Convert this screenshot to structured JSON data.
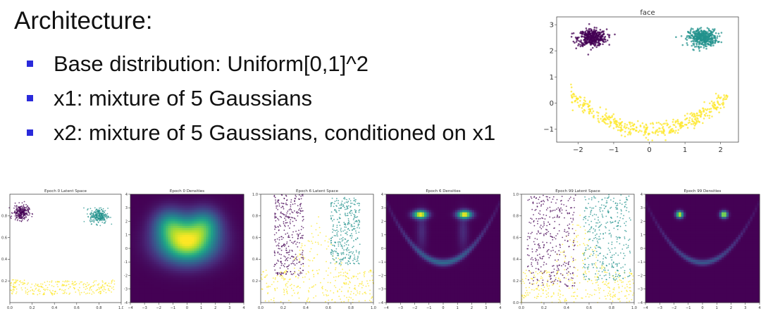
{
  "slide": {
    "title": "Architecture:",
    "bullets": [
      "Base distribution: Uniform[0,1]^2",
      "x1: mixture of 5 Gaussians",
      "x2: mixture of 5 Gaussians, conditioned on x1"
    ],
    "bullet_color": "#2a2adb"
  },
  "chart_data": [
    {
      "type": "scatter",
      "title": "face",
      "xlim": [
        -2.6,
        2.5
      ],
      "ylim": [
        -1.5,
        3.3
      ],
      "xticks": [
        -2,
        -1,
        0,
        1,
        2
      ],
      "yticks": [
        -1,
        0,
        1,
        2,
        3
      ],
      "series": [
        {
          "shape": "blob",
          "center": [
            -1.6,
            2.5
          ],
          "spread": [
            0.2,
            0.16
          ],
          "color": "#440154"
        },
        {
          "shape": "blob",
          "center": [
            1.5,
            2.5
          ],
          "spread": [
            0.2,
            0.16
          ],
          "color": "#21918c"
        },
        {
          "shape": "smile",
          "x_range": [
            -2.2,
            2.2
          ],
          "curve": "y = 0.28*x^2 - 1.05",
          "color": "#fde725"
        }
      ]
    },
    {
      "type": "scatter",
      "title": "Epoch 0 Latent Space",
      "xlim": [
        0,
        1
      ],
      "ylim": [
        0,
        1
      ],
      "xticks": [
        0.0,
        0.2,
        0.4,
        0.6,
        0.8,
        1.0
      ],
      "yticks": [
        0.2,
        0.4,
        0.6,
        0.8
      ],
      "series": [
        {
          "shape": "blob",
          "center": [
            0.1,
            0.83
          ],
          "spread": [
            0.035,
            0.035
          ],
          "color": "#440154"
        },
        {
          "shape": "blob",
          "center": [
            0.8,
            0.8
          ],
          "spread": [
            0.04,
            0.035
          ],
          "color": "#21918c"
        },
        {
          "shape": "band",
          "x_range": [
            0.0,
            0.95
          ],
          "y_range": [
            0.07,
            0.2
          ],
          "color": "#fde725"
        }
      ]
    },
    {
      "type": "heatmap",
      "title": "Epoch 0 Densities",
      "xlim": [
        -4,
        4
      ],
      "ylim": [
        -4,
        4
      ],
      "xticks": [
        -4,
        -3,
        -2,
        -1,
        0,
        1,
        2,
        3,
        4
      ],
      "yticks": [
        -4,
        -3,
        -2,
        -1,
        0,
        1,
        2,
        3,
        4
      ],
      "colormap": "viridis",
      "description": "single broad blob centered near (0, 0.5)"
    },
    {
      "type": "scatter",
      "title": "Epoch 6 Latent Space",
      "xlim": [
        0,
        1
      ],
      "ylim": [
        0,
        1
      ],
      "xticks": [
        0.0,
        0.2,
        0.4,
        0.6,
        0.8,
        1.0
      ],
      "yticks": [
        0.2,
        0.4,
        0.6,
        0.8,
        1.0
      ],
      "series": [
        {
          "shape": "region",
          "x_range": [
            0.12,
            0.38
          ],
          "y_range": [
            0.25,
            1.0
          ],
          "color": "#440154"
        },
        {
          "shape": "region",
          "x_range": [
            0.62,
            0.88
          ],
          "y_range": [
            0.35,
            0.97
          ],
          "color": "#21918c"
        },
        {
          "shape": "region",
          "x_range": [
            0.0,
            1.0
          ],
          "y_range": [
            0.0,
            0.7
          ],
          "color": "#fde725"
        }
      ]
    },
    {
      "type": "heatmap",
      "title": "Epoch 6 Densities",
      "xlim": [
        -4,
        4
      ],
      "ylim": [
        -4,
        4
      ],
      "xticks": [
        -4,
        -3,
        -2,
        -1,
        0,
        1,
        2,
        3,
        4
      ],
      "yticks": [
        -4,
        -3,
        -2,
        -1,
        0,
        1,
        2,
        3,
        4
      ],
      "colormap": "viridis",
      "description": "two bright eyes near (-1.6, 2.5) and (1.5, 2.5) with faint smile below"
    },
    {
      "type": "scatter",
      "title": "Epoch 99 Latent Space",
      "xlim": [
        0,
        1
      ],
      "ylim": [
        0,
        1
      ],
      "xticks": [
        0.0,
        0.2,
        0.4,
        0.6,
        0.8,
        1.0
      ],
      "yticks": [
        0.0,
        0.2,
        0.4,
        0.6,
        0.8,
        1.0
      ],
      "series": [
        {
          "shape": "region",
          "x_range": [
            0.05,
            0.48
          ],
          "y_range": [
            0.15,
            1.0
          ],
          "color": "#440154"
        },
        {
          "shape": "region",
          "x_range": [
            0.55,
            0.97
          ],
          "y_range": [
            0.2,
            1.0
          ],
          "color": "#21918c"
        },
        {
          "shape": "region",
          "x_range": [
            0.0,
            1.0
          ],
          "y_range": [
            0.0,
            1.0
          ],
          "color": "#fde725"
        }
      ]
    },
    {
      "type": "heatmap",
      "title": "Epoch 99 Densities",
      "xlim": [
        -4,
        4
      ],
      "ylim": [
        -4,
        4
      ],
      "xticks": [
        -4,
        -3,
        -2,
        -1,
        0,
        1,
        2,
        3,
        4
      ],
      "yticks": [
        -4,
        -3,
        -2,
        -1,
        0,
        1,
        2,
        3,
        4
      ],
      "colormap": "viridis",
      "description": "two sharp eyes at (-1.6, 2.5) and (1.5, 2.5) and dim smile curve"
    }
  ]
}
